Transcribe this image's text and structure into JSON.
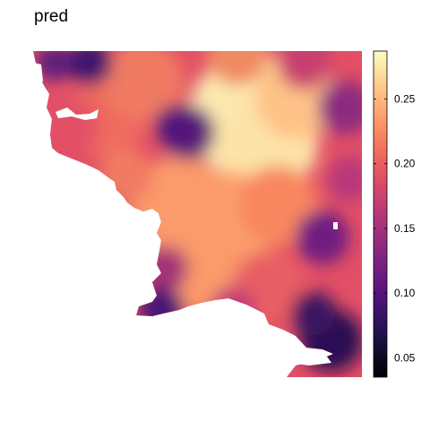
{
  "title": "pred",
  "chart_data": {
    "type": "heatmap",
    "title": "pred",
    "xlabel": "",
    "ylabel": "",
    "color_scale": {
      "name": "magma",
      "limits": [
        0.035,
        0.287
      ],
      "ticks": [
        0.05,
        0.1,
        0.15,
        0.2,
        0.25
      ],
      "tick_labels": [
        "0.05",
        "0.10",
        "0.15",
        "0.20",
        "0.25"
      ],
      "stops": [
        "#000004",
        "#1d1147",
        "#51127c",
        "#822681",
        "#b73779",
        "#e65164",
        "#fb8861",
        "#fec287",
        "#fcfdbf"
      ]
    },
    "value_range_observed": [
      0.04,
      0.28
    ],
    "grid": false,
    "legend_position": "right",
    "missing_color": "#ffffff"
  }
}
